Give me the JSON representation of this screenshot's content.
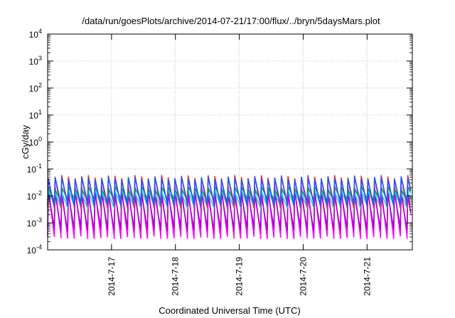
{
  "chart_data": {
    "type": "line",
    "title": "/data/run/goesPlots/archive/2014-07-21/17:00/flux/../bryn/5daysMars.plot",
    "xlabel": "Coordinated Universal Time (UTC)",
    "ylabel": "cGy/day",
    "yscale": "log",
    "ylim": [
      0.0001,
      10000
    ],
    "y_ticks": [
      {
        "base": "10",
        "exp": "-4"
      },
      {
        "base": "10",
        "exp": "-3"
      },
      {
        "base": "10",
        "exp": "-2"
      },
      {
        "base": "10",
        "exp": "-1"
      },
      {
        "base": "10",
        "exp": "0"
      },
      {
        "base": "10",
        "exp": "1"
      },
      {
        "base": "10",
        "exp": "2"
      },
      {
        "base": "10",
        "exp": "3"
      },
      {
        "base": "10",
        "exp": "4"
      }
    ],
    "xlim": [
      "2014-07-16T00:00",
      "2014-07-21T17:00"
    ],
    "x_ticks": [
      "2014-7-17",
      "2014-7-18",
      "2014-7-19",
      "2014-7-20",
      "2014-7-21"
    ],
    "grid": true,
    "legend": "none",
    "sawtooth_period_hours": 2.5,
    "series": [
      {
        "color": "#ff00ff",
        "peak": 0.02,
        "trough": 0.0003
      },
      {
        "color": "#aa00cc",
        "peak": 0.012,
        "trough": 0.0006
      },
      {
        "color": "#00e5ee",
        "peak": 0.015,
        "trough": 0.004
      },
      {
        "color": "#00aa44",
        "peak": 0.02,
        "trough": 0.007
      },
      {
        "color": "#ff3030",
        "peak": 0.05,
        "trough": 0.004
      },
      {
        "color": "#2255ff",
        "peak": 0.045,
        "trough": 0.005
      }
    ]
  }
}
